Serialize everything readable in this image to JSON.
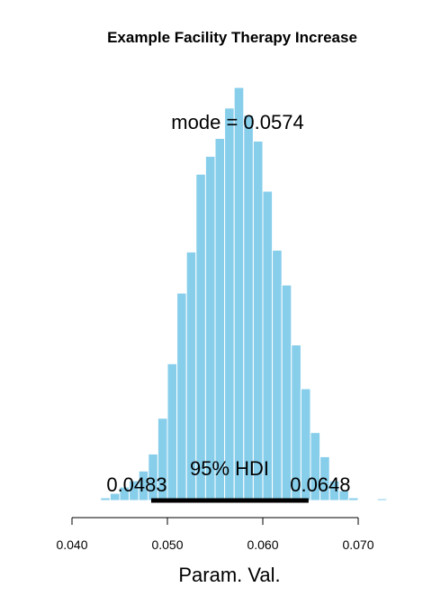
{
  "chart_data": {
    "type": "bar",
    "title": "Example Facility Therapy Increase",
    "xlabel": "Param. Val.",
    "ylabel": "",
    "xlim": [
      0.04,
      0.07
    ],
    "xticks": [
      0.04,
      0.05,
      0.06,
      0.07
    ],
    "xtick_labels": [
      "0.040",
      "0.050",
      "0.060",
      "0.070"
    ],
    "bar_color": "#87CEEB",
    "bar_edge_color": "#ffffff",
    "bin_width": 0.001,
    "bins_start": [
      0.042,
      0.043,
      0.044,
      0.045,
      0.046,
      0.047,
      0.048,
      0.049,
      0.05,
      0.051,
      0.052,
      0.053,
      0.054,
      0.055,
      0.056,
      0.057,
      0.058,
      0.059,
      0.06,
      0.061,
      0.062,
      0.063,
      0.064,
      0.065,
      0.066,
      0.067,
      0.068,
      0.069,
      0.072
    ],
    "values": [
      1,
      3,
      8,
      15,
      22,
      33,
      52,
      92,
      153,
      232,
      278,
      365,
      385,
      405,
      439,
      462,
      431,
      402,
      346,
      280,
      241,
      174,
      125,
      76,
      49,
      22,
      11,
      3,
      2
    ],
    "mode_label": "mode",
    "mode_value": "0.0574",
    "hdi_label": "95% HDI",
    "hdi_low": 0.0483,
    "hdi_high": 0.0648,
    "hdi_low_label": "0.0483",
    "hdi_high_label": "0.0648",
    "grid": false,
    "legend": "none"
  }
}
